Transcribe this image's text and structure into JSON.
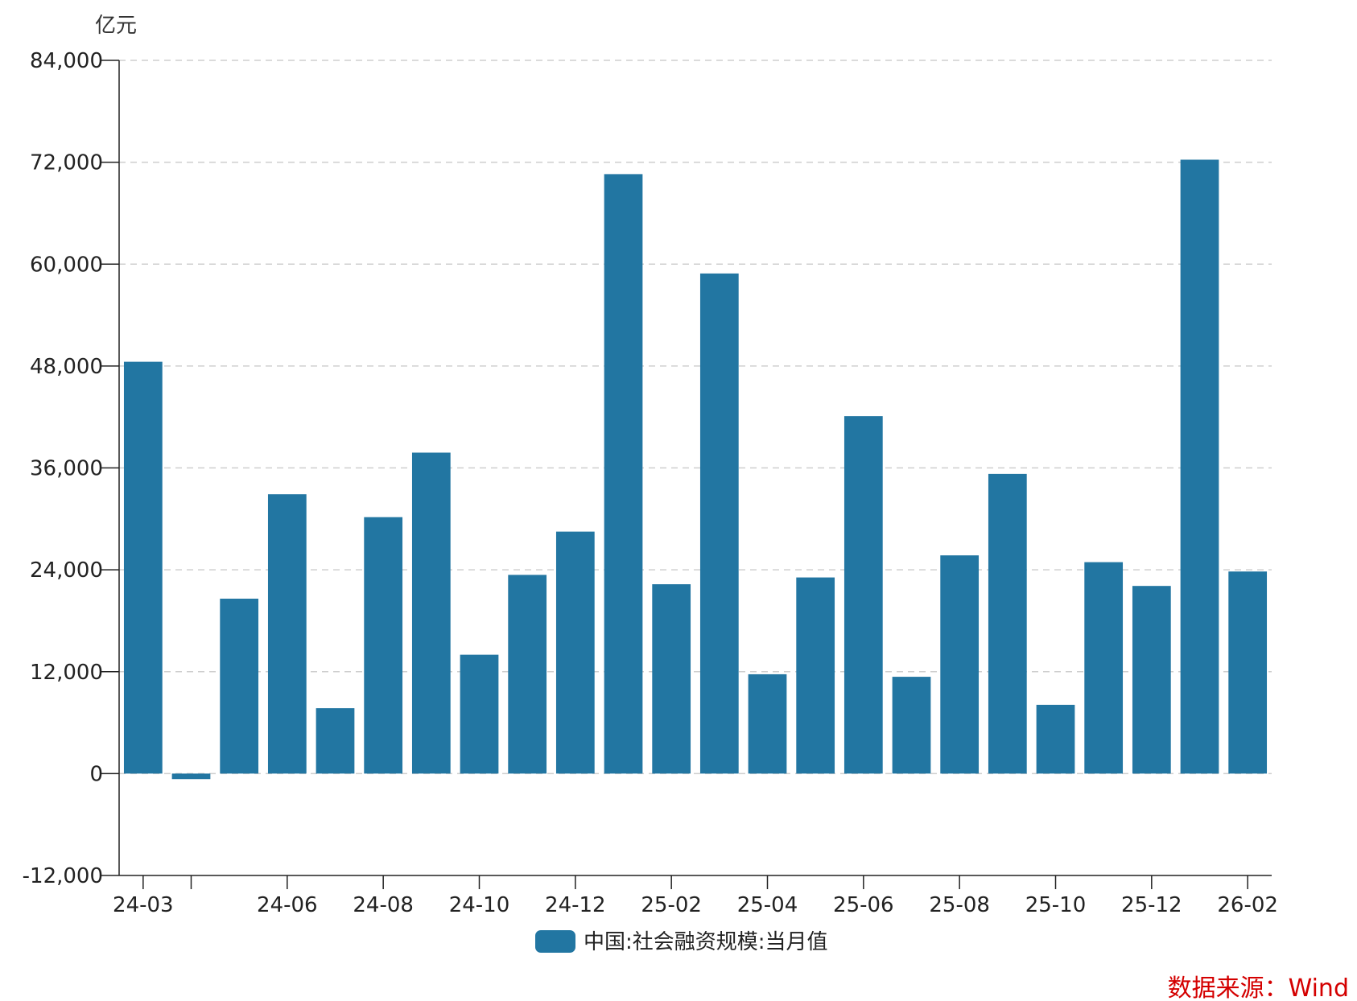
{
  "chart_data": {
    "type": "bar",
    "unit_label": "亿元",
    "categories": [
      "24-03",
      "24-04",
      "24-05",
      "24-06",
      "24-07",
      "24-08",
      "24-09",
      "24-10",
      "24-11",
      "24-12",
      "25-01",
      "25-02",
      "25-03",
      "25-04",
      "25-05",
      "25-06",
      "25-07",
      "25-08",
      "25-09",
      "25-10",
      "25-11",
      "25-12",
      "26-01",
      "26-02"
    ],
    "x_tick_labels": [
      "24-03",
      "",
      "24-06",
      "24-08",
      "24-10",
      "24-12",
      "25-02",
      "25-04",
      "25-06",
      "25-08",
      "25-10",
      "25-12",
      "26-02"
    ],
    "x_tick_label_categories": [
      "24-03",
      "24-04",
      "24-06",
      "24-08",
      "24-10",
      "24-12",
      "25-02",
      "25-04",
      "25-06",
      "25-08",
      "25-10",
      "25-12",
      "26-02"
    ],
    "series": [
      {
        "name": "中国:社会融资规模:当月值",
        "color": "#2276a2",
        "values": [
          48500,
          -650,
          20600,
          32900,
          7700,
          30200,
          37800,
          14000,
          23400,
          28500,
          70600,
          22300,
          58900,
          11700,
          23100,
          42100,
          11400,
          25700,
          35300,
          8100,
          24900,
          22100,
          72300,
          23800
        ]
      }
    ],
    "ylim": [
      -12000,
      84000
    ],
    "y_ticks": [
      -12000,
      0,
      12000,
      24000,
      36000,
      48000,
      60000,
      72000,
      84000
    ],
    "y_tick_labels": [
      "-12,000",
      "0",
      "12,000",
      "24,000",
      "36,000",
      "48,000",
      "60,000",
      "72,000",
      "84,000"
    ],
    "grid": true,
    "legend_position": "bottom-center"
  },
  "source": "数据来源：Wind"
}
